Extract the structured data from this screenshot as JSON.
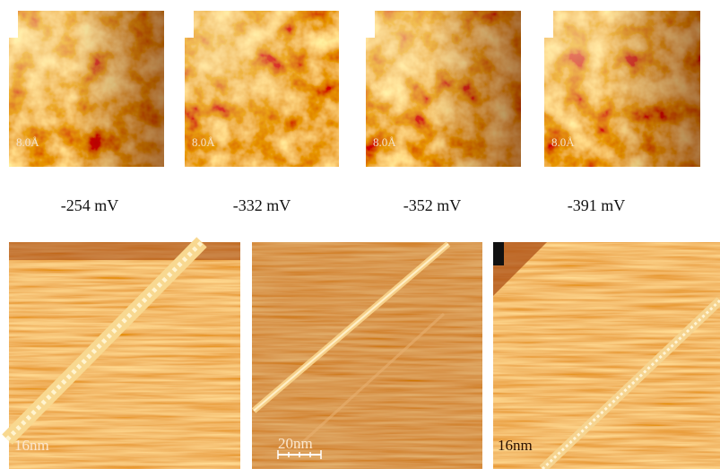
{
  "top_panels": [
    {
      "scale": "8.0Å",
      "voltage": "-254 mV"
    },
    {
      "scale": "8.0Å",
      "voltage": "-332 mV"
    },
    {
      "scale": "8.0Å",
      "voltage": "-352 mV"
    },
    {
      "scale": "8.0Å",
      "voltage": "-391 mV"
    }
  ],
  "bottom_panels": [
    {
      "scale": "16nm"
    },
    {
      "scale": "20nm"
    },
    {
      "scale": "16nm"
    }
  ]
}
